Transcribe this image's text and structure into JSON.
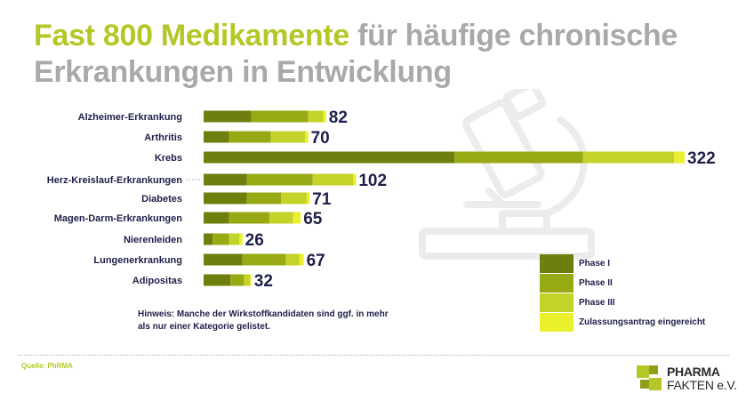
{
  "title": {
    "accent": "Fast 800 Medikamente",
    "rest": " für häufige chronische Erkrankungen in Entwicklung"
  },
  "chart_data": {
    "type": "bar",
    "orientation": "horizontal",
    "stacked": true,
    "categories": [
      "Alzheimer-Erkrankung",
      "Arthritis",
      "Krebs",
      "Herz-Kreislauf-Erkrankungen",
      "Diabetes",
      "Magen-Darm-Erkrankungen",
      "Nierenleiden",
      "Lungenerkrankung",
      "Adipositas"
    ],
    "totals": [
      82,
      70,
      322,
      102,
      71,
      65,
      26,
      67,
      32
    ],
    "series": [
      {
        "name": "Phase I",
        "color": "#6f7f0e",
        "values": [
          32,
          17,
          168,
          29,
          29,
          17,
          6,
          26,
          18
        ]
      },
      {
        "name": "Phase II",
        "color": "#97aa13",
        "values": [
          38,
          28,
          86,
          44,
          23,
          27,
          11,
          29,
          9
        ]
      },
      {
        "name": "Phase III",
        "color": "#c4d32a",
        "values": [
          10,
          23,
          61,
          27,
          17,
          16,
          7,
          9,
          4
        ]
      },
      {
        "name": "Zulassungsantrag eingereicht",
        "color": "#eaf02c",
        "values": [
          2,
          2,
          7,
          2,
          2,
          5,
          2,
          3,
          1
        ]
      }
    ],
    "xlim": [
      0,
      322
    ],
    "grid": false,
    "legend": "bottom-right"
  },
  "note": "Hinweis: Manche der Wirkstoffkandidaten sind ggf. in mehr als nur einer Kategorie gelistet.",
  "source": "Quelle: PhRMA",
  "logo": {
    "line1": "PHARMA",
    "line2": "FAKTEN e.V."
  }
}
